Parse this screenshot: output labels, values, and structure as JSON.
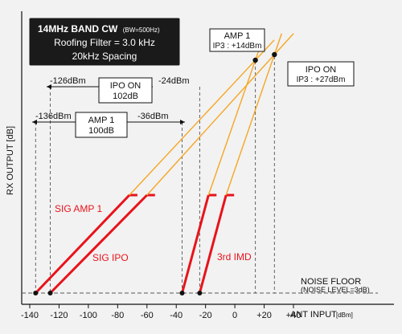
{
  "title_box": {
    "line1": "14MHz BAND CW",
    "line1_small": "(BW=500Hz)",
    "line2": "Roofing Filter = 3.0 kHz",
    "line3": "20kHz Spacing"
  },
  "amp1_ip3": {
    "line1": "AMP 1",
    "line2": "IP3 : +14dBm"
  },
  "ipo_ip3": {
    "line1": "IPO ON",
    "line2": "IP3 : +27dBm"
  },
  "ipo_range": {
    "left": "-126dBm",
    "line1": "IPO ON",
    "line2": "102dB",
    "right": "-24dBm"
  },
  "amp1_range": {
    "left": "-136dBm",
    "line1": "AMP 1",
    "line2": "100dB",
    "right": "-36dBm"
  },
  "noise_floor": {
    "line1": "NOISE FLOOR",
    "line2": "(NOISE LEVEL=3dB)"
  },
  "series_labels": {
    "sig_amp1": "SIG AMP 1",
    "sig_ipo": "SIG IPO",
    "imd": "3rd IMD"
  },
  "colors": {
    "red": "#e8131b",
    "orange": "#f5a623",
    "axis": "#111111",
    "box_fill": "#1a1a1a"
  },
  "chart_data": {
    "type": "line",
    "xlabel": "ANT INPUT",
    "xunit": "[dBm]",
    "ylabel": "RX OUTPUT [dB]",
    "xlim": [
      -140,
      40
    ],
    "x_ticks": [
      {
        "value": -140,
        "label": "-140"
      },
      {
        "value": -120,
        "label": "-120"
      },
      {
        "value": -100,
        "label": "-100"
      },
      {
        "value": -80,
        "label": "-80"
      },
      {
        "value": -60,
        "label": "-60"
      },
      {
        "value": -40,
        "label": "-40"
      },
      {
        "value": -20,
        "label": "-20"
      },
      {
        "value": 0,
        "label": "0"
      },
      {
        "value": 20,
        "label": "+20"
      },
      {
        "value": 40,
        "label": "+40"
      }
    ],
    "series": [
      {
        "name": "SIG AMP 1",
        "x": [
          -136,
          -72,
          14
        ],
        "color": "#e8131b",
        "extended_color": "#f5a623"
      },
      {
        "name": "SIG IPO",
        "x": [
          -126,
          -60,
          27
        ],
        "color": "#e8131b",
        "extended_color": "#f5a623"
      },
      {
        "name": "3rd IMD",
        "x": [
          -36,
          -18,
          14
        ],
        "color": "#e8131b",
        "extended_color": "#f5a623"
      },
      {
        "name": "3rd IMD",
        "x": [
          -24,
          -6,
          27
        ],
        "color": "#e8131b",
        "extended_color": "#f5a623"
      }
    ],
    "intercept_points": [
      {
        "label": "AMP 1 IP3",
        "x": 14
      },
      {
        "label": "IPO ON IP3",
        "x": 27
      }
    ],
    "dynamic_range": [
      {
        "name": "IPO ON",
        "from": -126,
        "to": -24,
        "value_db": 102
      },
      {
        "name": "AMP 1",
        "from": -136,
        "to": -36,
        "value_db": 100
      }
    ]
  }
}
